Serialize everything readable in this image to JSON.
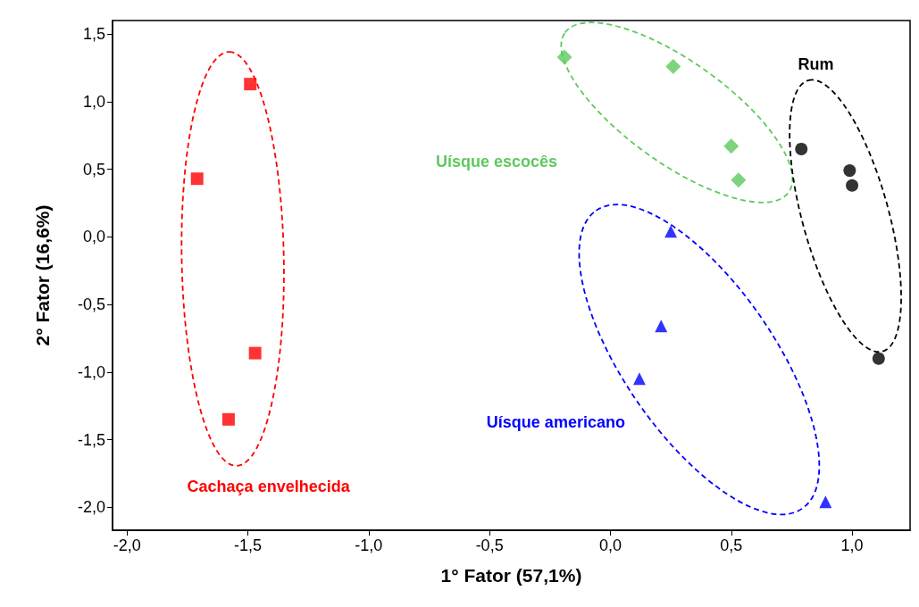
{
  "chart_data": {
    "type": "scatter",
    "xlabel": "1° Fator (57,1%)",
    "ylabel": "2° Fator (16,6%)",
    "xlim": [
      -2.06,
      1.24
    ],
    "ylim": [
      -2.17,
      1.6
    ],
    "xticks": [
      {
        "value": -2,
        "label": "-2,0"
      },
      {
        "value": -1.5,
        "label": "-1,5"
      },
      {
        "value": -1,
        "label": "-1,0"
      },
      {
        "value": -0.5,
        "label": "-0,5"
      },
      {
        "value": 0,
        "label": "0,0"
      },
      {
        "value": 0.5,
        "label": "0,5"
      },
      {
        "value": 1,
        "label": "1,0"
      }
    ],
    "yticks": [
      {
        "value": -2,
        "label": "-2,0"
      },
      {
        "value": -1.5,
        "label": "-1,5"
      },
      {
        "value": -1,
        "label": "-1,0"
      },
      {
        "value": -0.5,
        "label": "-0,5"
      },
      {
        "value": 0,
        "label": "0,0"
      },
      {
        "value": 0.5,
        "label": "0,5"
      },
      {
        "value": 1,
        "label": "1,0"
      },
      {
        "value": 1.5,
        "label": "1,5"
      }
    ],
    "grid": false,
    "series": [
      {
        "name": "Cachaça envelhecida",
        "color": "#ff0000",
        "marker": "square",
        "x": [
          -1.49,
          -1.71,
          -1.47,
          -1.58
        ],
        "values": [
          1.13,
          0.43,
          -0.86,
          -1.35
        ]
      },
      {
        "name": "Uísque escocês",
        "color": "#5ec95e",
        "marker": "diamond",
        "x": [
          -0.19,
          0.26,
          0.5,
          0.53
        ],
        "values": [
          1.33,
          1.26,
          0.67,
          0.42
        ]
      },
      {
        "name": "Rum",
        "color": "#000000",
        "marker": "circle",
        "x": [
          0.79,
          0.99,
          1.0,
          1.11
        ],
        "values": [
          0.65,
          0.49,
          0.38,
          -0.9
        ]
      },
      {
        "name": "Uísque americano",
        "color": "#0000ff",
        "marker": "triangle",
        "x": [
          0.25,
          0.21,
          0.12,
          0.89
        ],
        "values": [
          0.04,
          -0.66,
          -1.05,
          -1.96
        ]
      }
    ]
  }
}
